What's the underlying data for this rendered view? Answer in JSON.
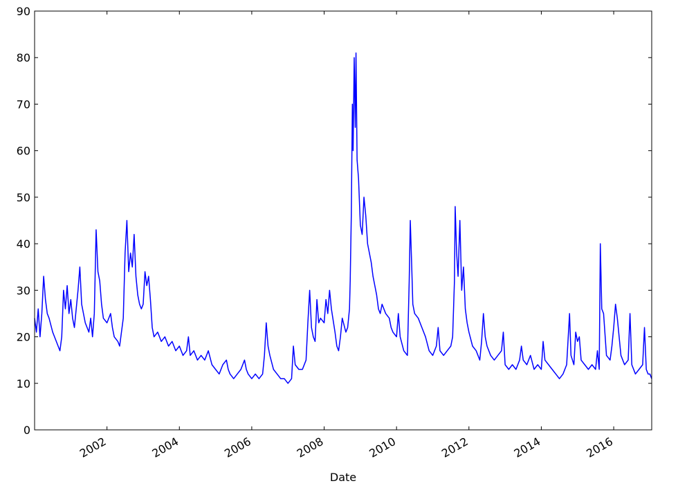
{
  "chart_data": {
    "type": "line",
    "x_label": "Date",
    "color": "#0000ff",
    "x": [
      2000.0,
      2000.05,
      2000.1,
      2000.15,
      2000.2,
      2000.25,
      2000.3,
      2000.35,
      2000.4,
      2000.5,
      2000.6,
      2000.7,
      2000.75,
      2000.8,
      2000.85,
      2000.9,
      2000.95,
      2001.0,
      2001.05,
      2001.1,
      2001.2,
      2001.25,
      2001.3,
      2001.4,
      2001.5,
      2001.55,
      2001.6,
      2001.65,
      2001.7,
      2001.75,
      2001.8,
      2001.85,
      2001.9,
      2002.0,
      2002.1,
      2002.15,
      2002.2,
      2002.3,
      2002.35,
      2002.45,
      2002.5,
      2002.55,
      2002.6,
      2002.65,
      2002.7,
      2002.75,
      2002.8,
      2002.85,
      2002.9,
      2002.95,
      2003.0,
      2003.05,
      2003.1,
      2003.15,
      2003.2,
      2003.25,
      2003.3,
      2003.4,
      2003.5,
      2003.6,
      2003.7,
      2003.8,
      2003.9,
      2004.0,
      2004.1,
      2004.2,
      2004.25,
      2004.3,
      2004.4,
      2004.5,
      2004.6,
      2004.7,
      2004.8,
      2004.9,
      2005.0,
      2005.1,
      2005.2,
      2005.3,
      2005.35,
      2005.4,
      2005.5,
      2005.6,
      2005.7,
      2005.8,
      2005.85,
      2005.9,
      2006.0,
      2006.1,
      2006.2,
      2006.3,
      2006.35,
      2006.4,
      2006.45,
      2006.5,
      2006.6,
      2006.7,
      2006.8,
      2006.9,
      2007.0,
      2007.1,
      2007.15,
      2007.2,
      2007.3,
      2007.4,
      2007.5,
      2007.55,
      2007.6,
      2007.65,
      2007.7,
      2007.75,
      2007.8,
      2007.85,
      2007.9,
      2008.0,
      2008.05,
      2008.1,
      2008.15,
      2008.2,
      2008.3,
      2008.35,
      2008.4,
      2008.45,
      2008.5,
      2008.6,
      2008.65,
      2008.7,
      2008.72,
      2008.75,
      2008.78,
      2008.8,
      2008.83,
      2008.86,
      2008.88,
      2008.91,
      2008.95,
      2009.0,
      2009.05,
      2009.1,
      2009.15,
      2009.2,
      2009.3,
      2009.35,
      2009.4,
      2009.45,
      2009.5,
      2009.55,
      2009.6,
      2009.7,
      2009.8,
      2009.85,
      2009.9,
      2010.0,
      2010.05,
      2010.1,
      2010.2,
      2010.3,
      2010.35,
      2010.38,
      2010.42,
      2010.45,
      2010.5,
      2010.6,
      2010.7,
      2010.8,
      2010.9,
      2011.0,
      2011.1,
      2011.15,
      2011.2,
      2011.3,
      2011.4,
      2011.5,
      2011.55,
      2011.6,
      2011.62,
      2011.66,
      2011.7,
      2011.75,
      2011.8,
      2011.85,
      2011.9,
      2011.95,
      2012.0,
      2012.1,
      2012.2,
      2012.3,
      2012.35,
      2012.4,
      2012.45,
      2012.5,
      2012.6,
      2012.7,
      2012.8,
      2012.9,
      2012.95,
      2013.0,
      2013.1,
      2013.2,
      2013.3,
      2013.4,
      2013.45,
      2013.5,
      2013.6,
      2013.7,
      2013.8,
      2013.9,
      2014.0,
      2014.05,
      2014.1,
      2014.2,
      2014.3,
      2014.4,
      2014.5,
      2014.6,
      2014.7,
      2014.78,
      2014.82,
      2014.9,
      2014.95,
      2015.0,
      2015.05,
      2015.1,
      2015.2,
      2015.3,
      2015.4,
      2015.5,
      2015.55,
      2015.6,
      2015.63,
      2015.67,
      2015.72,
      2015.8,
      2015.9,
      2015.95,
      2016.0,
      2016.05,
      2016.1,
      2016.15,
      2016.2,
      2016.3,
      2016.4,
      2016.45,
      2016.5,
      2016.6,
      2016.7,
      2016.8,
      2016.85,
      2016.9,
      2016.95,
      2017.0,
      2017.05
    ],
    "values": [
      24,
      21,
      26,
      20,
      25,
      33,
      28,
      25,
      24,
      21,
      19,
      17,
      20,
      30,
      26,
      31,
      25,
      28,
      24,
      22,
      30,
      35,
      27,
      23,
      21,
      24,
      20,
      25,
      43,
      34,
      32,
      27,
      24,
      23,
      25,
      22,
      20,
      19,
      18,
      24,
      38,
      45,
      34,
      38,
      35,
      42,
      33,
      29,
      27,
      26,
      27,
      34,
      31,
      33,
      28,
      22,
      20,
      21,
      19,
      20,
      18,
      19,
      17,
      18,
      16,
      17,
      20,
      16,
      17,
      15,
      16,
      15,
      17,
      14,
      13,
      12,
      14,
      15,
      13,
      12,
      11,
      12,
      13,
      15,
      13,
      12,
      11,
      12,
      11,
      12,
      16,
      23,
      18,
      16,
      13,
      12,
      11,
      11,
      10,
      11,
      18,
      14,
      13,
      13,
      15,
      23,
      30,
      22,
      20,
      19,
      28,
      23,
      24,
      23,
      28,
      25,
      30,
      26,
      21,
      18,
      17,
      20,
      24,
      21,
      22,
      26,
      32,
      46,
      70,
      60,
      80,
      65,
      81,
      58,
      54,
      44,
      42,
      50,
      46,
      40,
      36,
      33,
      31,
      29,
      26,
      25,
      27,
      25,
      24,
      22,
      21,
      20,
      25,
      20,
      17,
      16,
      32,
      45,
      35,
      27,
      25,
      24,
      22,
      20,
      17,
      16,
      18,
      22,
      17,
      16,
      17,
      18,
      20,
      32,
      48,
      38,
      33,
      45,
      30,
      35,
      26,
      23,
      21,
      18,
      17,
      15,
      19,
      25,
      20,
      18,
      16,
      15,
      16,
      17,
      21,
      14,
      13,
      14,
      13,
      15,
      18,
      15,
      14,
      16,
      13,
      14,
      13,
      19,
      15,
      14,
      13,
      12,
      11,
      12,
      14,
      25,
      16,
      14,
      21,
      19,
      20,
      15,
      14,
      13,
      14,
      13,
      17,
      13,
      40,
      26,
      25,
      16,
      15,
      18,
      22,
      27,
      24,
      20,
      16,
      14,
      15,
      25,
      14,
      12,
      13,
      14,
      22,
      13,
      12,
      12,
      11
    ],
    "xlim": [
      2000.0,
      2017.05
    ],
    "xticks": [
      2002,
      2004,
      2006,
      2008,
      2010,
      2012,
      2014,
      2016
    ],
    "ylim": [
      0,
      90
    ],
    "yticks": [
      0,
      10,
      20,
      30,
      40,
      50,
      60,
      70,
      80,
      90
    ]
  }
}
